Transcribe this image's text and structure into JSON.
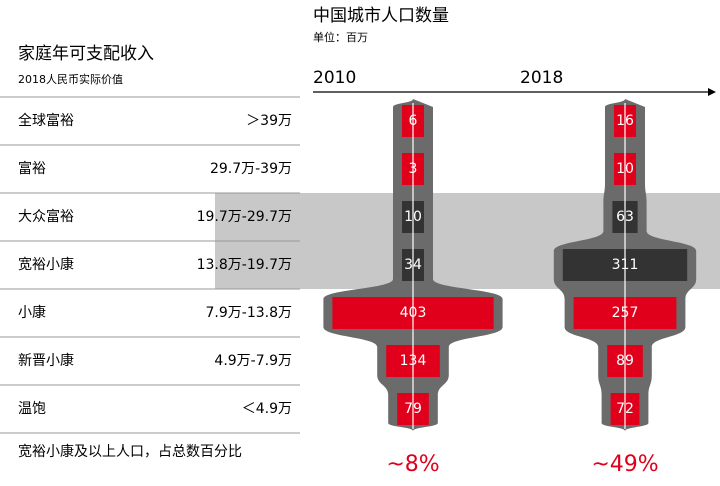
{
  "chart_data": {
    "type": "centered-bar",
    "title": "中国城市人口数量",
    "subtitle": "单位：百万",
    "table_title": "家庭年可支配收入",
    "table_subtitle": "2018人民币实际价值",
    "categories": [
      "全球富裕",
      "富裕",
      "大众富裕",
      "宽裕小康",
      "小康",
      "新晋小康",
      "温饱"
    ],
    "ranges": [
      "＞39万",
      "29.7万-39万",
      "19.7万-29.7万",
      "13.8万-19.7万",
      "7.9万-13.8万",
      "4.9万-7.9万",
      "＜4.9万"
    ],
    "colors": [
      "#e0001b",
      "#e0001b",
      "#333333",
      "#333333",
      "#e0001b",
      "#e0001b",
      "#e0001b"
    ],
    "highlight_band": [
      2,
      3
    ],
    "footer": "宽裕小康及以上人口，占总数百分比",
    "series": [
      {
        "name": "2010",
        "values": [
          6,
          3,
          10,
          34,
          403,
          134,
          79
        ],
        "share": "~8%"
      },
      {
        "name": "2018",
        "values": [
          16,
          10,
          63,
          311,
          257,
          89,
          72
        ],
        "share": "~49%"
      }
    ]
  }
}
